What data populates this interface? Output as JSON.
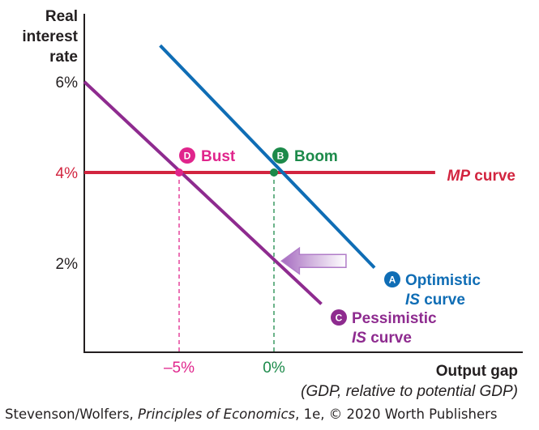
{
  "chart_data": {
    "type": "line",
    "ylabel_lines": [
      "Real",
      "interest",
      "rate"
    ],
    "xlabel": "Output gap",
    "xlabel_sub": "(GDP, relative to potential GDP)",
    "x_ticks": [
      {
        "label": "–5%",
        "value": -5,
        "color": "#e0258c"
      },
      {
        "label": "0%",
        "value": 0,
        "color": "#1c8a4a"
      }
    ],
    "y_ticks": [
      {
        "label": "6%",
        "value": 6,
        "color": "#231f20"
      },
      {
        "label": "4%",
        "value": 4,
        "color": "#d2243f"
      },
      {
        "label": "2%",
        "value": 2,
        "color": "#231f20"
      }
    ],
    "xlim": [
      -10,
      10
    ],
    "ylim": [
      0,
      7.3
    ],
    "series": [
      {
        "key": "mp",
        "label_bold": "MP",
        "label_rest": " curve",
        "color": "#d2243f",
        "x": [
          -10,
          8.5
        ],
        "y": [
          4,
          4
        ]
      },
      {
        "key": "optimistic",
        "badge": "A",
        "label_line1": "Optimistic",
        "label_line2_bold": "IS",
        "label_line2_rest": " curve",
        "color": "#0f6db5",
        "x": [
          -6,
          5.3
        ],
        "y": [
          6.8,
          1.9
        ]
      },
      {
        "key": "pessimistic",
        "badge": "C",
        "label_line1": "Pessimistic",
        "label_line2_bold": "IS",
        "label_line2_rest": " curve",
        "color": "#8e2b8f",
        "x": [
          -10,
          2.5
        ],
        "y": [
          6,
          1.1
        ]
      }
    ],
    "points": [
      {
        "key": "bust",
        "badge": "D",
        "label": "Bust",
        "x": -5,
        "y": 4,
        "color": "#e0258c"
      },
      {
        "key": "boom",
        "badge": "B",
        "label": "Boom",
        "x": 0,
        "y": 4,
        "color": "#1c8a4a"
      }
    ],
    "shift_arrow": {
      "direction": "left",
      "from_x": 3.8,
      "to_x": 0.4,
      "y": 2.05,
      "color": "#b07cc8"
    }
  },
  "credit": {
    "pre": "Stevenson/Wolfers, ",
    "italic": "Principles of Economics",
    "post": ", 1e, © 2020 Worth Publishers"
  }
}
